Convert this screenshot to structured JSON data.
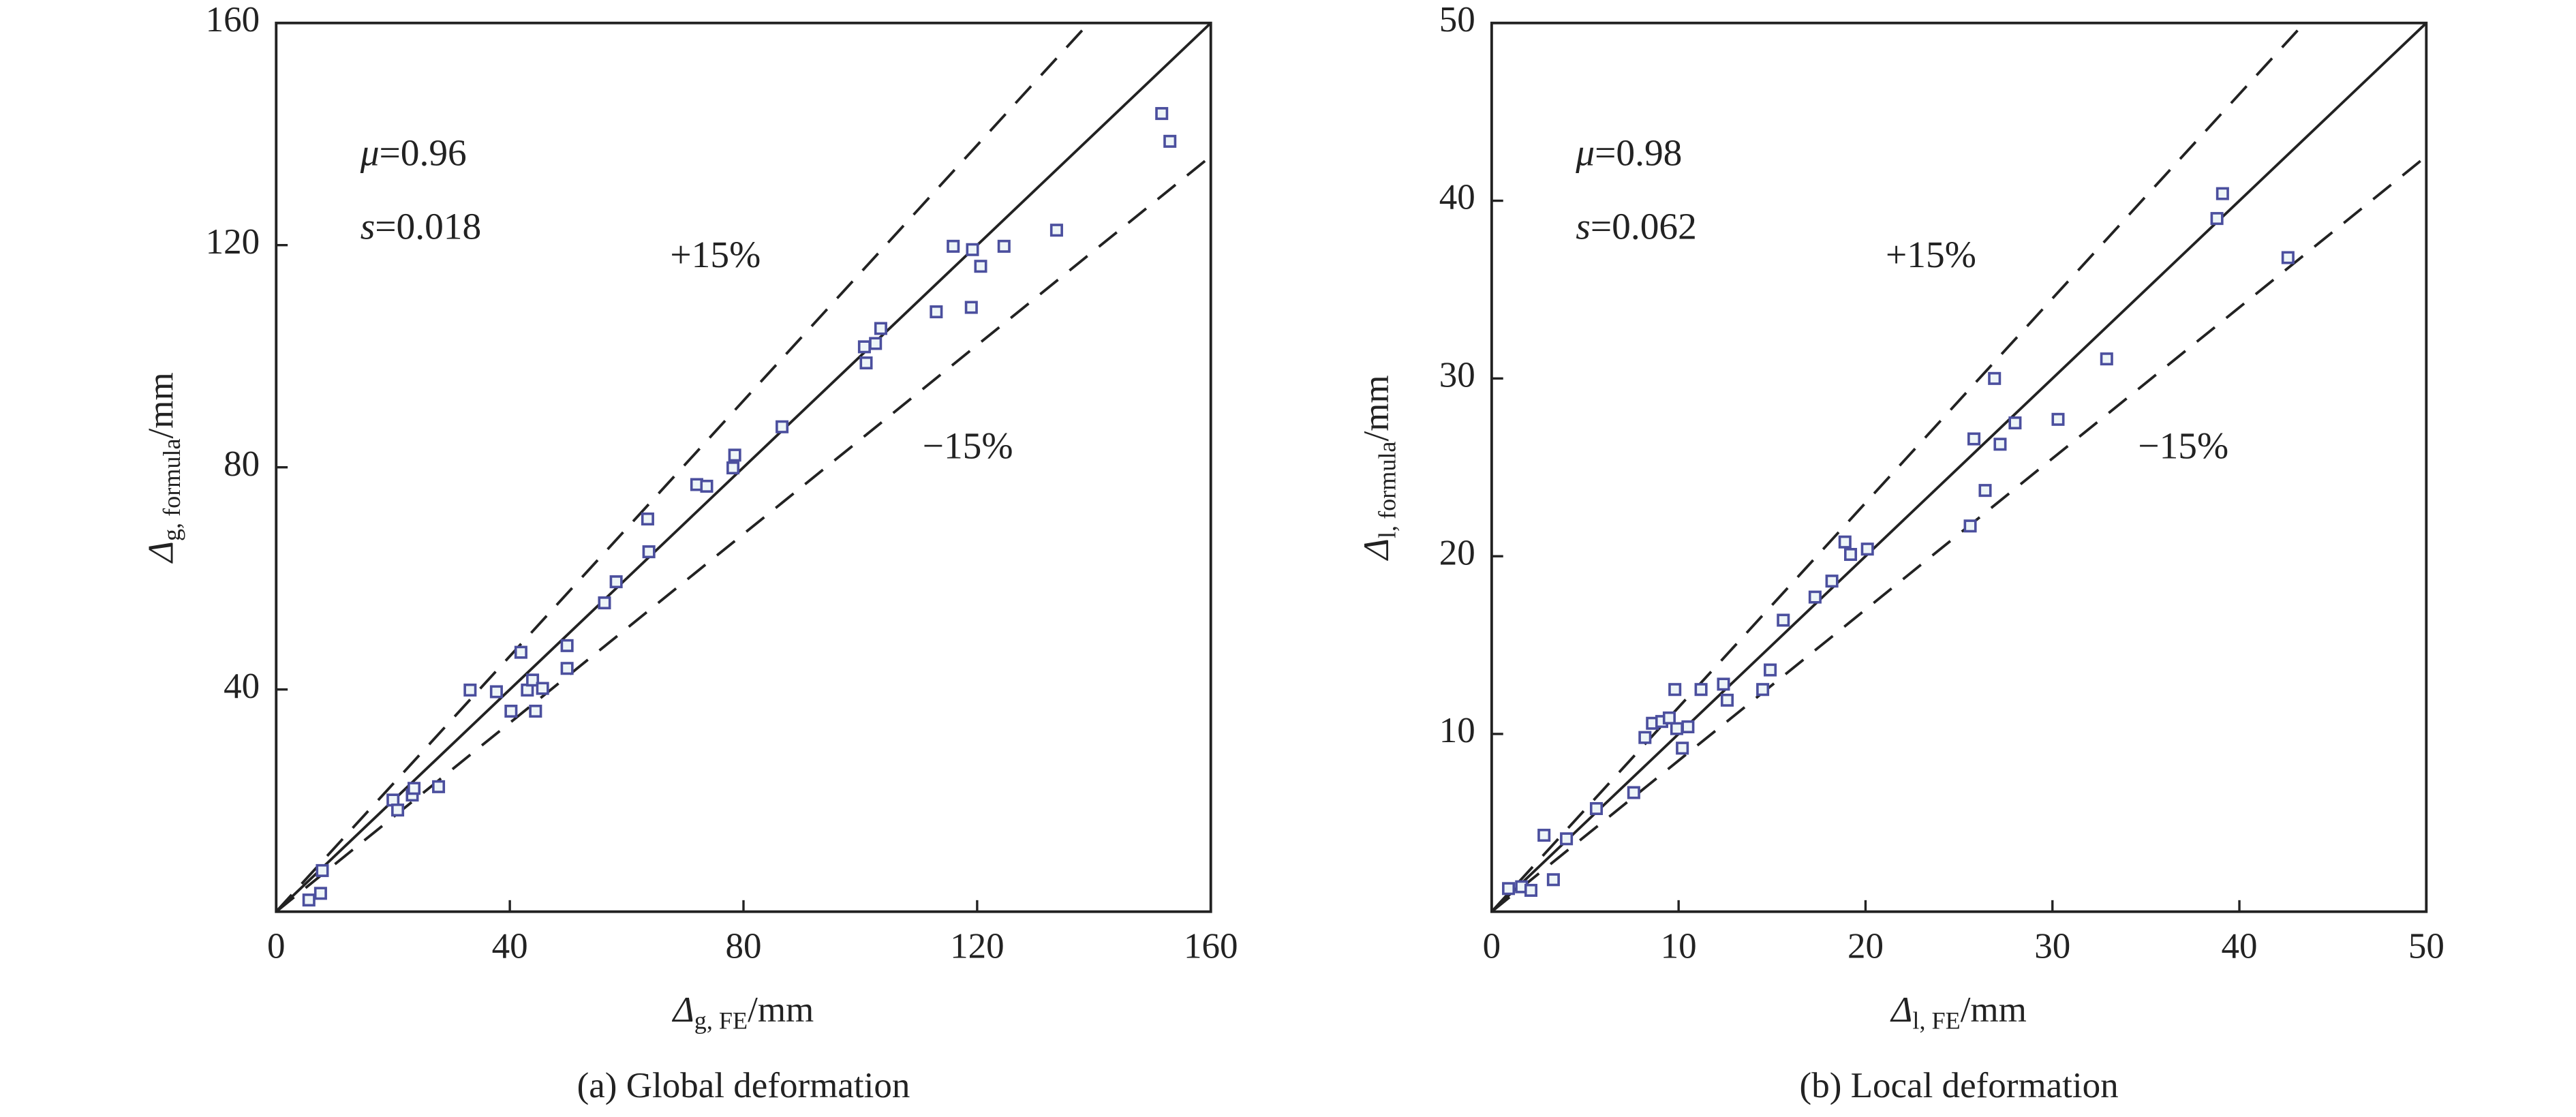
{
  "chart_data": [
    {
      "type": "scatter",
      "caption": "(a) Global deformation",
      "xlabel": [
        "Δ",
        "g, FE",
        "/mm"
      ],
      "ylabel": [
        "Δ",
        "g, formula",
        "/mm"
      ],
      "annotations": [
        [
          "μ",
          "=0.96"
        ],
        [
          "s",
          "=0.018"
        ]
      ],
      "lines": [
        {
          "slope": 1
        },
        {
          "slope": 1.15,
          "label": "+15%",
          "dash": true
        },
        {
          "slope": 0.85,
          "label": "−15%",
          "dash": true
        }
      ],
      "xlim": [
        0,
        160
      ],
      "ylim": [
        0,
        160
      ],
      "xticks": [
        0,
        40,
        80,
        120,
        160
      ],
      "yticks": [
        40,
        80,
        120,
        160
      ],
      "color": "#4b4f9e",
      "x": [
        5.6,
        7.6,
        7.9,
        20.0,
        20.8,
        23.3,
        23.6,
        27.8,
        33.2,
        37.7,
        40.2,
        41.9,
        43.0,
        43.9,
        44.4,
        45.6,
        49.8,
        49.8,
        56.2,
        58.2,
        63.6,
        63.8,
        72.0,
        73.7,
        78.2,
        78.5,
        86.6,
        100.7,
        101.0,
        102.6,
        103.5,
        113.0,
        115.9,
        119.0,
        119.2,
        120.6,
        124.6,
        133.6,
        151.6,
        153.0
      ],
      "values": [
        2.1,
        3.3,
        7.4,
        20.1,
        18.3,
        21.0,
        22.2,
        22.5,
        39.9,
        39.6,
        36.1,
        46.7,
        39.9,
        41.7,
        36.1,
        40.2,
        47.9,
        43.8,
        55.6,
        59.4,
        70.7,
        64.8,
        76.9,
        76.6,
        79.9,
        82.2,
        87.3,
        101.7,
        98.8,
        102.3,
        105.0,
        108.0,
        119.8,
        108.8,
        119.2,
        116.2,
        119.8,
        122.7,
        143.7,
        138.7
      ]
    },
    {
      "type": "scatter",
      "caption": "(b) Local deformation",
      "xlabel": [
        "Δ",
        "l, FE",
        "/mm"
      ],
      "ylabel": [
        "Δ",
        "l, formula",
        "/mm"
      ],
      "annotations": [
        [
          "μ",
          "=0.98"
        ],
        [
          "s",
          "=0.062"
        ]
      ],
      "lines": [
        {
          "slope": 1
        },
        {
          "slope": 1.15,
          "label": "+15%",
          "dash": true
        },
        {
          "slope": 0.85,
          "label": "−15%",
          "dash": true
        }
      ],
      "xlim": [
        0,
        50
      ],
      "ylim": [
        0,
        50
      ],
      "xticks": [
        0,
        10,
        20,
        30,
        40,
        50
      ],
      "yticks": [
        10,
        20,
        30,
        40,
        50
      ],
      "color": "#4b4f9e",
      "x": [
        0.9,
        1.6,
        2.1,
        2.8,
        3.3,
        4.0,
        5.6,
        7.6,
        8.2,
        8.6,
        9.1,
        9.5,
        9.8,
        9.9,
        10.2,
        10.5,
        11.2,
        12.4,
        12.6,
        14.5,
        14.9,
        15.6,
        17.3,
        18.2,
        18.9,
        19.2,
        20.1,
        25.6,
        25.8,
        26.4,
        26.9,
        27.2,
        28.0,
        30.3,
        32.9,
        38.8,
        39.1,
        42.6
      ],
      "values": [
        1.3,
        1.4,
        1.2,
        4.3,
        1.8,
        4.1,
        5.8,
        6.7,
        9.8,
        10.6,
        10.7,
        10.9,
        12.5,
        10.3,
        9.2,
        10.4,
        12.5,
        12.8,
        11.9,
        12.5,
        13.6,
        16.4,
        17.7,
        18.6,
        20.8,
        20.1,
        20.4,
        21.7,
        26.6,
        23.7,
        30.0,
        26.3,
        27.5,
        27.7,
        31.1,
        39.0,
        40.4,
        36.8
      ]
    }
  ]
}
